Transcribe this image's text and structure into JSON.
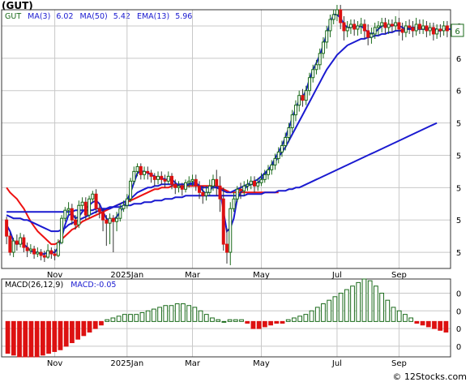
{
  "ticker_label": "(GUT)",
  "legend": {
    "symbol": "GUT",
    "ma3_label": "MA(3)",
    "ma3_value": "6.02",
    "ma50_label": "MA(50)",
    "ma50_value": "5.42",
    "ema13_label": "EMA(13)",
    "ema13_value": "5.96"
  },
  "macd_legend": {
    "label": "MACD(26,12,9)",
    "value_label": "MACD:",
    "value": "-0.05"
  },
  "watermark": "© 12Stocks.com",
  "colors": {
    "up_candle": "#1a6a1a",
    "down_candle": "#dd1111",
    "ma_red": "#ee1111",
    "ma_blue": "#1a1ad0",
    "macd_up": "#1a6a1a",
    "macd_down": "#dd1111",
    "grid": "#c8c8c8",
    "last_price_box": "#1a6a1a"
  },
  "chart_data": {
    "type": "candlestick",
    "x_tick_labels": [
      {
        "label": "Nov",
        "index": 14
      },
      {
        "label": "2025Jan",
        "index": 35
      },
      {
        "label": "Mar",
        "index": 54
      },
      {
        "label": "May",
        "index": 74
      },
      {
        "label": "Jul",
        "index": 96
      },
      {
        "label": "Sep",
        "index": 114
      }
    ],
    "y_tick_labels": [
      "6",
      "6",
      "6",
      "5",
      "5",
      "5",
      "5",
      "5"
    ],
    "y_ticks": [
      6.45,
      6.25,
      6.05,
      5.85,
      5.65,
      5.45,
      5.25,
      5.05
    ],
    "ylim": [
      4.95,
      6.55
    ],
    "last_price_label": "6",
    "last_price": 6.42,
    "candles": [
      [
        5.25,
        5.15,
        5.27,
        5.1
      ],
      [
        5.15,
        5.05,
        5.17,
        5.03
      ],
      [
        5.05,
        5.12,
        5.14,
        5.02
      ],
      [
        5.12,
        5.1,
        5.16,
        5.06
      ],
      [
        5.1,
        5.14,
        5.17,
        5.08
      ],
      [
        5.14,
        5.08,
        5.16,
        5.05
      ],
      [
        5.08,
        5.06,
        5.11,
        5.02
      ],
      [
        5.06,
        5.07,
        5.1,
        5.04
      ],
      [
        5.07,
        5.04,
        5.09,
        5.01
      ],
      [
        5.04,
        5.05,
        5.08,
        5.02
      ],
      [
        5.05,
        5.03,
        5.07,
        5.0
      ],
      [
        5.03,
        5.02,
        5.06,
        4.99
      ],
      [
        5.02,
        5.06,
        5.1,
        5.01
      ],
      [
        5.06,
        5.04,
        5.08,
        5.01
      ],
      [
        5.04,
        5.03,
        5.07,
        5.0
      ],
      [
        5.03,
        5.11,
        5.13,
        5.02
      ],
      [
        5.11,
        5.26,
        5.28,
        5.1
      ],
      [
        5.26,
        5.31,
        5.33,
        5.24
      ],
      [
        5.31,
        5.32,
        5.36,
        5.28
      ],
      [
        5.32,
        5.25,
        5.35,
        5.22
      ],
      [
        5.25,
        5.22,
        5.28,
        5.19
      ],
      [
        5.22,
        5.34,
        5.37,
        5.2
      ],
      [
        5.34,
        5.36,
        5.39,
        5.31
      ],
      [
        5.36,
        5.28,
        5.39,
        5.25
      ],
      [
        5.28,
        5.38,
        5.4,
        5.26
      ],
      [
        5.38,
        5.41,
        5.43,
        5.36
      ],
      [
        5.41,
        5.32,
        5.44,
        5.29
      ],
      [
        5.32,
        5.3,
        5.35,
        5.26
      ],
      [
        5.3,
        5.25,
        5.32,
        5.18
      ],
      [
        5.25,
        5.23,
        5.28,
        5.09
      ],
      [
        5.23,
        5.26,
        5.29,
        5.1
      ],
      [
        5.26,
        5.24,
        5.28,
        5.05
      ],
      [
        5.24,
        5.26,
        5.3,
        5.18
      ],
      [
        5.26,
        5.32,
        5.35,
        5.24
      ],
      [
        5.32,
        5.34,
        5.37,
        5.3
      ],
      [
        5.34,
        5.38,
        5.41,
        5.32
      ],
      [
        5.38,
        5.49,
        5.51,
        5.36
      ],
      [
        5.49,
        5.55,
        5.58,
        5.47
      ],
      [
        5.55,
        5.58,
        5.6,
        5.52
      ],
      [
        5.58,
        5.53,
        5.6,
        5.5
      ],
      [
        5.53,
        5.55,
        5.58,
        5.5
      ],
      [
        5.55,
        5.54,
        5.58,
        5.5
      ],
      [
        5.54,
        5.52,
        5.56,
        5.48
      ],
      [
        5.52,
        5.5,
        5.54,
        5.46
      ],
      [
        5.5,
        5.52,
        5.55,
        5.47
      ],
      [
        5.52,
        5.5,
        5.55,
        5.47
      ],
      [
        5.5,
        5.49,
        5.53,
        5.45
      ],
      [
        5.49,
        5.52,
        5.55,
        5.47
      ],
      [
        5.52,
        5.47,
        5.54,
        5.44
      ],
      [
        5.47,
        5.45,
        5.5,
        5.41
      ],
      [
        5.45,
        5.46,
        5.49,
        5.42
      ],
      [
        5.46,
        5.44,
        5.48,
        5.4
      ],
      [
        5.44,
        5.48,
        5.5,
        5.42
      ],
      [
        5.48,
        5.49,
        5.52,
        5.45
      ],
      [
        5.49,
        5.5,
        5.53,
        5.46
      ],
      [
        5.5,
        5.46,
        5.53,
        5.43
      ],
      [
        5.46,
        5.42,
        5.49,
        5.38
      ],
      [
        5.42,
        5.4,
        5.46,
        5.35
      ],
      [
        5.4,
        5.42,
        5.46,
        5.37
      ],
      [
        5.42,
        5.46,
        5.5,
        5.4
      ],
      [
        5.46,
        5.5,
        5.53,
        5.43
      ],
      [
        5.5,
        5.46,
        5.56,
        5.4
      ],
      [
        5.46,
        5.38,
        5.52,
        5.3
      ],
      [
        5.38,
        5.1,
        5.45,
        5.06
      ],
      [
        5.1,
        5.05,
        5.2,
        4.98
      ],
      [
        5.05,
        5.32,
        5.36,
        4.97
      ],
      [
        5.32,
        5.38,
        5.42,
        5.3
      ],
      [
        5.38,
        5.44,
        5.46,
        5.36
      ],
      [
        5.44,
        5.43,
        5.48,
        5.38
      ],
      [
        5.43,
        5.46,
        5.49,
        5.4
      ],
      [
        5.46,
        5.47,
        5.5,
        5.43
      ],
      [
        5.47,
        5.49,
        5.52,
        5.44
      ],
      [
        5.49,
        5.46,
        5.52,
        5.42
      ],
      [
        5.46,
        5.48,
        5.51,
        5.43
      ],
      [
        5.48,
        5.5,
        5.54,
        5.46
      ],
      [
        5.5,
        5.53,
        5.56,
        5.48
      ],
      [
        5.53,
        5.56,
        5.59,
        5.5
      ],
      [
        5.56,
        5.59,
        5.62,
        5.53
      ],
      [
        5.59,
        5.63,
        5.66,
        5.56
      ],
      [
        5.63,
        5.67,
        5.7,
        5.6
      ],
      [
        5.67,
        5.71,
        5.74,
        5.64
      ],
      [
        5.71,
        5.76,
        5.79,
        5.68
      ],
      [
        5.76,
        5.82,
        5.85,
        5.73
      ],
      [
        5.82,
        5.9,
        5.93,
        5.79
      ],
      [
        5.9,
        5.96,
        5.99,
        5.86
      ],
      [
        5.96,
        6.02,
        6.05,
        5.92
      ],
      [
        6.02,
        5.99,
        6.06,
        5.95
      ],
      [
        5.99,
        6.05,
        6.08,
        5.96
      ],
      [
        6.05,
        6.13,
        6.16,
        6.02
      ],
      [
        6.13,
        6.18,
        6.21,
        6.1
      ],
      [
        6.18,
        6.21,
        6.24,
        6.15
      ],
      [
        6.21,
        6.28,
        6.31,
        6.18
      ],
      [
        6.28,
        6.35,
        6.38,
        6.25
      ],
      [
        6.35,
        6.42,
        6.45,
        6.31
      ],
      [
        6.42,
        6.49,
        6.52,
        6.38
      ],
      [
        6.49,
        6.52,
        6.55,
        6.46
      ],
      [
        6.52,
        6.55,
        6.58,
        6.48
      ],
      [
        6.55,
        6.47,
        6.58,
        6.43
      ],
      [
        6.47,
        6.42,
        6.51,
        6.36
      ],
      [
        6.42,
        6.44,
        6.48,
        6.38
      ],
      [
        6.44,
        6.46,
        6.49,
        6.4
      ],
      [
        6.46,
        6.43,
        6.49,
        6.39
      ],
      [
        6.43,
        6.45,
        6.48,
        6.39
      ],
      [
        6.45,
        6.46,
        6.5,
        6.4
      ],
      [
        6.46,
        6.42,
        6.49,
        6.37
      ],
      [
        6.42,
        6.38,
        6.46,
        6.33
      ],
      [
        6.38,
        6.4,
        6.44,
        6.34
      ],
      [
        6.4,
        6.44,
        6.47,
        6.37
      ],
      [
        6.44,
        6.45,
        6.48,
        6.39
      ],
      [
        6.45,
        6.47,
        6.5,
        6.41
      ],
      [
        6.47,
        6.44,
        6.5,
        6.4
      ],
      [
        6.44,
        6.46,
        6.49,
        6.4
      ],
      [
        6.46,
        6.45,
        6.49,
        6.41
      ],
      [
        6.45,
        6.47,
        6.51,
        6.42
      ],
      [
        6.47,
        6.43,
        6.5,
        6.39
      ],
      [
        6.43,
        6.41,
        6.47,
        6.36
      ],
      [
        6.41,
        6.45,
        6.48,
        6.38
      ],
      [
        6.45,
        6.44,
        6.49,
        6.4
      ],
      [
        6.44,
        6.42,
        6.48,
        6.38
      ],
      [
        6.42,
        6.46,
        6.5,
        6.39
      ],
      [
        6.46,
        6.43,
        6.49,
        6.4
      ],
      [
        6.43,
        6.45,
        6.49,
        6.4
      ],
      [
        6.45,
        6.42,
        6.48,
        6.38
      ],
      [
        6.42,
        6.44,
        6.47,
        6.39
      ],
      [
        6.44,
        6.4,
        6.47,
        6.36
      ],
      [
        6.4,
        6.43,
        6.46,
        6.37
      ],
      [
        6.43,
        6.42,
        6.46,
        6.38
      ],
      [
        6.42,
        6.45,
        6.48,
        6.39
      ],
      [
        6.45,
        6.42,
        6.48,
        6.38
      ]
    ],
    "ma_red": [
      5.45,
      5.42,
      5.4,
      5.38,
      5.35,
      5.32,
      5.28,
      5.24,
      5.21,
      5.18,
      5.16,
      5.14,
      5.12,
      5.1,
      5.1,
      5.11,
      5.13,
      5.15,
      5.17,
      5.19,
      5.2,
      5.22,
      5.24,
      5.25,
      5.26,
      5.27,
      5.28,
      5.29,
      5.3,
      5.31,
      5.32,
      5.33,
      5.34,
      5.35,
      5.36,
      5.36,
      5.37,
      5.38,
      5.39,
      5.4,
      5.41,
      5.42,
      5.43,
      5.44,
      5.44,
      5.45,
      5.45,
      5.45,
      5.46,
      5.46,
      5.46,
      5.46,
      5.46,
      5.46,
      5.46,
      5.46,
      5.46,
      5.46,
      5.46,
      5.46,
      5.46,
      5.46,
      5.45,
      5.44,
      5.43,
      5.42,
      5.42,
      5.42,
      5.42,
      5.42,
      5.42,
      5.42,
      5.42,
      5.42,
      5.42,
      5.42,
      5.42,
      5.42,
      5.42,
      5.42
    ],
    "ema_blue": [
      5.28,
      5.27,
      5.26,
      5.26,
      5.26,
      5.25,
      5.25,
      5.24,
      5.23,
      5.22,
      5.21,
      5.2,
      5.19,
      5.18,
      5.18,
      5.18,
      5.19,
      5.2,
      5.22,
      5.23,
      5.24,
      5.25,
      5.26,
      5.27,
      5.28,
      5.29,
      5.3,
      5.31,
      5.31,
      5.32,
      5.32,
      5.33,
      5.34,
      5.35,
      5.36,
      5.37,
      5.38,
      5.4,
      5.42,
      5.43,
      5.44,
      5.45,
      5.45,
      5.46,
      5.46,
      5.47,
      5.47,
      5.47,
      5.47,
      5.47,
      5.47,
      5.47,
      5.47,
      5.47,
      5.47,
      5.47,
      5.46,
      5.45,
      5.45,
      5.45,
      5.45,
      5.45,
      5.44,
      5.43,
      5.42,
      5.42,
      5.43,
      5.44,
      5.45,
      5.46,
      5.47,
      5.48,
      5.49,
      5.5,
      5.52,
      5.54,
      5.56,
      5.58,
      5.61,
      5.64,
      5.67,
      5.7,
      5.74,
      5.78,
      5.82,
      5.86,
      5.9,
      5.94,
      5.98,
      6.02,
      6.06,
      6.1,
      6.14,
      6.18,
      6.21,
      6.24,
      6.27,
      6.29,
      6.31,
      6.33,
      6.34,
      6.35,
      6.36,
      6.37,
      6.37,
      6.38,
      6.38,
      6.39,
      6.39,
      6.4,
      6.4,
      6.41,
      6.41,
      6.42,
      6.42,
      6.42,
      6.43,
      6.43,
      6.43,
      6.43,
      6.43,
      6.43,
      6.43,
      6.43,
      6.43,
      6.43
    ],
    "ma3_blue": [
      5.22,
      5.18,
      5.12,
      5.1,
      5.11,
      5.1,
      5.08,
      5.06,
      5.05,
      5.05,
      5.04,
      5.04,
      5.05,
      5.05,
      5.05,
      5.08,
      5.14,
      5.22,
      5.28,
      5.29,
      5.26,
      5.27,
      5.3,
      5.32,
      5.34,
      5.36,
      5.37,
      5.35,
      5.3,
      5.26,
      5.24,
      5.25,
      5.27,
      5.3,
      5.33,
      5.37,
      5.42,
      5.48,
      5.54,
      5.55,
      5.55,
      5.54,
      5.53,
      5.52,
      5.51,
      5.51,
      5.5,
      5.5,
      5.5,
      5.48,
      5.46,
      5.45,
      5.46,
      5.47,
      5.48,
      5.48,
      5.46,
      5.43,
      5.41,
      5.43,
      5.46,
      5.46,
      5.44,
      5.3,
      5.18,
      5.2,
      5.26,
      5.38,
      5.42,
      5.44,
      5.46,
      5.47,
      5.47,
      5.48,
      5.5,
      5.53,
      5.56,
      5.59,
      5.63,
      5.67,
      5.71,
      5.76,
      5.82,
      5.88,
      5.94,
      5.99,
      6.01,
      6.05,
      6.12,
      6.18,
      6.22,
      6.27,
      6.33,
      6.4,
      6.47,
      6.52,
      6.52,
      6.5,
      6.46,
      6.44,
      6.44,
      6.45,
      6.44,
      6.45,
      6.43,
      6.41,
      6.4,
      6.41,
      6.43,
      6.45,
      6.45,
      6.45,
      6.45,
      6.46,
      6.45,
      6.44,
      6.43,
      6.44,
      6.44,
      6.44,
      6.44,
      6.44,
      6.44,
      6.43,
      6.43,
      6.42,
      6.42,
      6.43,
      6.43,
      6.43
    ],
    "ma50_blue": [
      5.3,
      5.3,
      5.3,
      5.3,
      5.3,
      5.3,
      5.3,
      5.3,
      5.3,
      5.3,
      5.3,
      5.3,
      5.3,
      5.3,
      5.3,
      5.3,
      5.3,
      5.3,
      5.3,
      5.3,
      5.31,
      5.31,
      5.31,
      5.31,
      5.31,
      5.31,
      5.32,
      5.32,
      5.32,
      5.32,
      5.33,
      5.33,
      5.33,
      5.33,
      5.34,
      5.34,
      5.34,
      5.35,
      5.35,
      5.35,
      5.36,
      5.36,
      5.36,
      5.37,
      5.37,
      5.37,
      5.38,
      5.38,
      5.38,
      5.39,
      5.39,
      5.39,
      5.4,
      5.4,
      5.4,
      5.4,
      5.4,
      5.4,
      5.4,
      5.4,
      5.4,
      5.4,
      5.4,
      5.4,
      5.4,
      5.4,
      5.4,
      5.4,
      5.4,
      5.4,
      5.41,
      5.41,
      5.41,
      5.41,
      5.41,
      5.42,
      5.42,
      5.42,
      5.42,
      5.43,
      5.43,
      5.43,
      5.44,
      5.44,
      5.45,
      5.45,
      5.46,
      5.47,
      5.48,
      5.49,
      5.5,
      5.51,
      5.52,
      5.53,
      5.54,
      5.55,
      5.56,
      5.57,
      5.58,
      5.59,
      5.6,
      5.61,
      5.62,
      5.63,
      5.64,
      5.65,
      5.66,
      5.67,
      5.68,
      5.69,
      5.7,
      5.71,
      5.72,
      5.73,
      5.74,
      5.75,
      5.76,
      5.77,
      5.78,
      5.79,
      5.8,
      5.81,
      5.82,
      5.83,
      5.84,
      5.85
    ],
    "macd": {
      "y_tick_labels": [
        "0",
        "0",
        "0",
        "0"
      ],
      "y_ticks": [
        0.08,
        0.03,
        -0.02,
        -0.07
      ],
      "ylim": [
        -0.1,
        0.12
      ],
      "histogram": [
        -0.09,
        -0.095,
        -0.1,
        -0.1,
        -0.1,
        -0.1,
        -0.095,
        -0.09,
        -0.085,
        -0.08,
        -0.07,
        -0.06,
        -0.05,
        -0.04,
        -0.03,
        -0.02,
        -0.01,
        0.005,
        0.01,
        0.015,
        0.02,
        0.02,
        0.02,
        0.025,
        0.03,
        0.035,
        0.04,
        0.045,
        0.045,
        0.05,
        0.05,
        0.045,
        0.04,
        0.03,
        0.02,
        0.01,
        0.005,
        0.0,
        0.005,
        0.005,
        0.005,
        -0.005,
        -0.02,
        -0.02,
        -0.015,
        -0.01,
        -0.005,
        -0.005,
        0.005,
        0.01,
        0.015,
        0.02,
        0.03,
        0.04,
        0.05,
        0.06,
        0.07,
        0.08,
        0.09,
        0.1,
        0.11,
        0.12,
        0.115,
        0.1,
        0.08,
        0.06,
        0.04,
        0.03,
        0.02,
        0.01,
        -0.005,
        -0.01,
        -0.015,
        -0.02,
        -0.025,
        -0.03
      ]
    }
  }
}
